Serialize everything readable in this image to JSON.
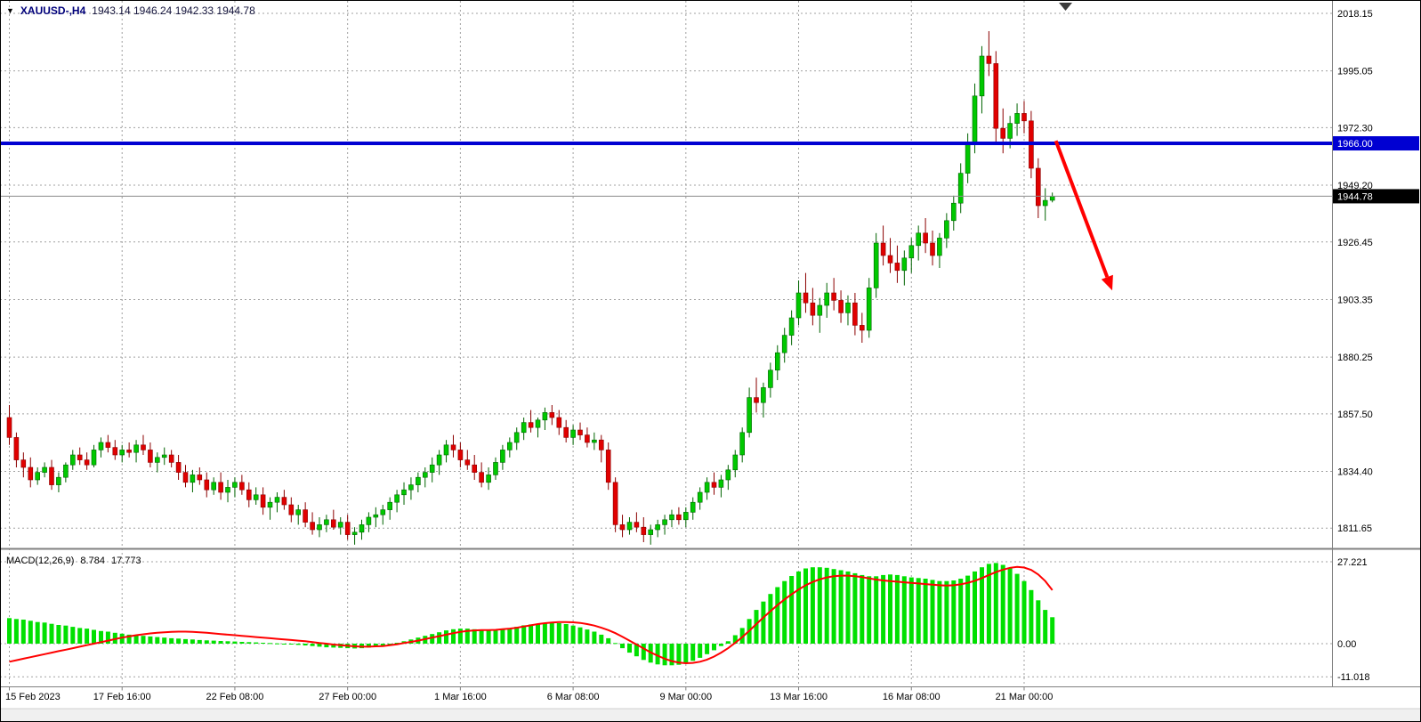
{
  "title": {
    "collapse_icon": "▼",
    "symbol": "XAUUSD-,H4",
    "ohlc": "1943.14 1946.24 1942.33 1944.78"
  },
  "macd_panel": {
    "title": "MACD(12,26,9)",
    "value_main": "8.784",
    "value_signal": "17.773"
  },
  "colors": {
    "up": "#00c800",
    "up_border": "#006400",
    "down": "#e00000",
    "down_border": "#8b0000",
    "histogram": "#00e000",
    "signal": "#ff0000",
    "hline": "#0000d2",
    "grid": "#a0a0a0",
    "current_chip_bg": "#000000",
    "arrow": "#ff0000"
  },
  "chart_data": {
    "type": "candlestick",
    "symbol": "XAUUSD",
    "timeframe": "H4",
    "current_candle": {
      "open": 1943.14,
      "high": 1946.24,
      "low": 1942.33,
      "close": 1944.78
    },
    "current_price": {
      "value": 1944.78,
      "label": "1944.78"
    },
    "hline": {
      "value": 1966.0,
      "label": "1966.00"
    },
    "price_axis": [
      {
        "label": "2018.15",
        "value": 2018.15
      },
      {
        "label": "1995.05",
        "value": 1995.05
      },
      {
        "label": "1972.30",
        "value": 1972.3
      },
      {
        "label": "1949.20",
        "value": 1949.2
      },
      {
        "label": "1926.45",
        "value": 1926.45
      },
      {
        "label": "1903.35",
        "value": 1903.35
      },
      {
        "label": "1880.25",
        "value": 1880.25
      },
      {
        "label": "1857.50",
        "value": 1857.5
      },
      {
        "label": "1834.40",
        "value": 1834.4
      },
      {
        "label": "1811.65",
        "value": 1811.65
      }
    ],
    "time_axis": [
      {
        "label": "15 Feb 2023",
        "i": 0
      },
      {
        "label": "17 Feb 16:00",
        "i": 16
      },
      {
        "label": "22 Feb 08:00",
        "i": 32
      },
      {
        "label": "27 Feb 00:00",
        "i": 48
      },
      {
        "label": "1 Mar 16:00",
        "i": 64
      },
      {
        "label": "6 Mar 08:00",
        "i": 80
      },
      {
        "label": "9 Mar 00:00",
        "i": 96
      },
      {
        "label": "13 Mar 16:00",
        "i": 112
      },
      {
        "label": "16 Mar 08:00",
        "i": 128
      },
      {
        "label": "21 Mar 00:00",
        "i": 144
      }
    ],
    "candles": [
      [
        1856,
        1861,
        1845,
        1848
      ],
      [
        1848,
        1850,
        1836,
        1839
      ],
      [
        1839,
        1842,
        1832,
        1836
      ],
      [
        1836,
        1840,
        1828,
        1831
      ],
      [
        1831,
        1836,
        1829,
        1834
      ],
      [
        1834,
        1838,
        1832,
        1836
      ],
      [
        1836,
        1839,
        1827,
        1829
      ],
      [
        1829,
        1834,
        1826,
        1832
      ],
      [
        1832,
        1838,
        1830,
        1837
      ],
      [
        1837,
        1843,
        1835,
        1841
      ],
      [
        1841,
        1844,
        1837,
        1839
      ],
      [
        1839,
        1842,
        1835,
        1837
      ],
      [
        1837,
        1845,
        1836,
        1843
      ],
      [
        1843,
        1848,
        1840,
        1846
      ],
      [
        1846,
        1849,
        1842,
        1844
      ],
      [
        1844,
        1847,
        1839,
        1841
      ],
      [
        1841,
        1845,
        1838,
        1843
      ],
      [
        1843,
        1846,
        1840,
        1842
      ],
      [
        1842,
        1847,
        1838,
        1845
      ],
      [
        1845,
        1849,
        1841,
        1843
      ],
      [
        1843,
        1846,
        1836,
        1838
      ],
      [
        1838,
        1842,
        1834,
        1840
      ],
      [
        1840,
        1844,
        1837,
        1841
      ],
      [
        1841,
        1843,
        1836,
        1838
      ],
      [
        1838,
        1841,
        1831,
        1834
      ],
      [
        1834,
        1837,
        1828,
        1830
      ],
      [
        1830,
        1835,
        1826,
        1833
      ],
      [
        1833,
        1836,
        1829,
        1831
      ],
      [
        1831,
        1834,
        1824,
        1827
      ],
      [
        1827,
        1832,
        1825,
        1830
      ],
      [
        1830,
        1834,
        1823,
        1826
      ],
      [
        1826,
        1831,
        1822,
        1828
      ],
      [
        1828,
        1832,
        1824,
        1830
      ],
      [
        1830,
        1833,
        1825,
        1827
      ],
      [
        1827,
        1830,
        1820,
        1823
      ],
      [
        1823,
        1828,
        1821,
        1825
      ],
      [
        1825,
        1828,
        1817,
        1820
      ],
      [
        1820,
        1824,
        1815,
        1822
      ],
      [
        1822,
        1826,
        1818,
        1824
      ],
      [
        1824,
        1827,
        1819,
        1821
      ],
      [
        1821,
        1824,
        1814,
        1817
      ],
      [
        1817,
        1821,
        1813,
        1819
      ],
      [
        1819,
        1822,
        1812,
        1814
      ],
      [
        1814,
        1818,
        1809,
        1811
      ],
      [
        1811,
        1816,
        1808,
        1813
      ],
      [
        1813,
        1817,
        1810,
        1815
      ],
      [
        1815,
        1819,
        1811,
        1812
      ],
      [
        1812,
        1816,
        1809,
        1814
      ],
      [
        1814,
        1817,
        1807,
        1809
      ],
      [
        1809,
        1812,
        1805,
        1810
      ],
      [
        1810,
        1815,
        1807,
        1813
      ],
      [
        1813,
        1818,
        1810,
        1816
      ],
      [
        1816,
        1820,
        1812,
        1817
      ],
      [
        1817,
        1821,
        1813,
        1819
      ],
      [
        1819,
        1824,
        1815,
        1822
      ],
      [
        1822,
        1827,
        1818,
        1825
      ],
      [
        1825,
        1830,
        1821,
        1827
      ],
      [
        1827,
        1832,
        1823,
        1829
      ],
      [
        1829,
        1834,
        1826,
        1832
      ],
      [
        1832,
        1836,
        1828,
        1834
      ],
      [
        1834,
        1840,
        1830,
        1837
      ],
      [
        1837,
        1843,
        1833,
        1841
      ],
      [
        1841,
        1847,
        1838,
        1845
      ],
      [
        1845,
        1849,
        1840,
        1843
      ],
      [
        1843,
        1846,
        1836,
        1839
      ],
      [
        1839,
        1843,
        1835,
        1837
      ],
      [
        1837,
        1841,
        1831,
        1834
      ],
      [
        1834,
        1838,
        1828,
        1830
      ],
      [
        1830,
        1836,
        1827,
        1833
      ],
      [
        1833,
        1840,
        1831,
        1838
      ],
      [
        1838,
        1845,
        1835,
        1843
      ],
      [
        1843,
        1848,
        1840,
        1846
      ],
      [
        1846,
        1852,
        1843,
        1850
      ],
      [
        1850,
        1856,
        1847,
        1854
      ],
      [
        1854,
        1859,
        1850,
        1852
      ],
      [
        1852,
        1856,
        1848,
        1855
      ],
      [
        1855,
        1860,
        1851,
        1858
      ],
      [
        1858,
        1861,
        1853,
        1856
      ],
      [
        1856,
        1859,
        1849,
        1852
      ],
      [
        1852,
        1855,
        1846,
        1848
      ],
      [
        1848,
        1853,
        1845,
        1851
      ],
      [
        1851,
        1854,
        1847,
        1849
      ],
      [
        1849,
        1852,
        1844,
        1846
      ],
      [
        1846,
        1850,
        1843,
        1847
      ],
      [
        1847,
        1849,
        1838,
        1843
      ],
      [
        1843,
        1846,
        1827,
        1830
      ],
      [
        1830,
        1832,
        1810,
        1813
      ],
      [
        1813,
        1817,
        1808,
        1811
      ],
      [
        1811,
        1816,
        1809,
        1814
      ],
      [
        1814,
        1818,
        1810,
        1812
      ],
      [
        1812,
        1816,
        1806,
        1809
      ],
      [
        1809,
        1813,
        1805,
        1811
      ],
      [
        1811,
        1815,
        1808,
        1813
      ],
      [
        1813,
        1817,
        1809,
        1815
      ],
      [
        1815,
        1819,
        1812,
        1817
      ],
      [
        1817,
        1820,
        1813,
        1815
      ],
      [
        1815,
        1820,
        1812,
        1818
      ],
      [
        1818,
        1824,
        1815,
        1822
      ],
      [
        1822,
        1828,
        1819,
        1826
      ],
      [
        1826,
        1832,
        1823,
        1830
      ],
      [
        1830,
        1834,
        1825,
        1828
      ],
      [
        1828,
        1833,
        1824,
        1831
      ],
      [
        1831,
        1837,
        1827,
        1835
      ],
      [
        1835,
        1843,
        1832,
        1841
      ],
      [
        1841,
        1852,
        1838,
        1850
      ],
      [
        1850,
        1868,
        1848,
        1864
      ],
      [
        1864,
        1872,
        1858,
        1862
      ],
      [
        1862,
        1870,
        1856,
        1868
      ],
      [
        1868,
        1878,
        1864,
        1875
      ],
      [
        1875,
        1885,
        1871,
        1882
      ],
      [
        1882,
        1892,
        1878,
        1889
      ],
      [
        1889,
        1899,
        1885,
        1896
      ],
      [
        1896,
        1911,
        1893,
        1906
      ],
      [
        1906,
        1914,
        1898,
        1902
      ],
      [
        1902,
        1908,
        1893,
        1897
      ],
      [
        1897,
        1904,
        1890,
        1901
      ],
      [
        1901,
        1910,
        1896,
        1906
      ],
      [
        1906,
        1912,
        1899,
        1903
      ],
      [
        1903,
        1907,
        1894,
        1898
      ],
      [
        1898,
        1905,
        1893,
        1902
      ],
      [
        1902,
        1906,
        1889,
        1893
      ],
      [
        1893,
        1898,
        1886,
        1891
      ],
      [
        1891,
        1912,
        1888,
        1908
      ],
      [
        1908,
        1930,
        1904,
        1926
      ],
      [
        1926,
        1933,
        1917,
        1921
      ],
      [
        1921,
        1928,
        1914,
        1918
      ],
      [
        1918,
        1925,
        1910,
        1915
      ],
      [
        1915,
        1923,
        1909,
        1920
      ],
      [
        1920,
        1928,
        1914,
        1925
      ],
      [
        1925,
        1933,
        1919,
        1930
      ],
      [
        1930,
        1936,
        1922,
        1926
      ],
      [
        1926,
        1931,
        1917,
        1921
      ],
      [
        1921,
        1930,
        1916,
        1928
      ],
      [
        1928,
        1938,
        1924,
        1935
      ],
      [
        1935,
        1945,
        1931,
        1942
      ],
      [
        1942,
        1958,
        1938,
        1954
      ],
      [
        1954,
        1970,
        1950,
        1966
      ],
      [
        1966,
        1990,
        1962,
        1985
      ],
      [
        1985,
        2005,
        1978,
        2001
      ],
      [
        2001,
        2011,
        1993,
        1998
      ],
      [
        1998,
        2003,
        1966,
        1972
      ],
      [
        1972,
        1980,
        1962,
        1968
      ],
      [
        1968,
        1977,
        1964,
        1974
      ],
      [
        1974,
        1982,
        1969,
        1978
      ],
      [
        1978,
        1983,
        1970,
        1975
      ],
      [
        1975,
        1979,
        1952,
        1956
      ],
      [
        1956,
        1960,
        1936,
        1941
      ],
      [
        1941,
        1948,
        1935,
        1943.1
      ],
      [
        1943.14,
        1946.24,
        1942.33,
        1944.78
      ]
    ],
    "macd": {
      "label": "MACD(12,26,9)",
      "main_value": 8.784,
      "signal_value": 17.773,
      "axis": [
        {
          "label": "27.221",
          "value": 27.221
        },
        {
          "label": "0.00",
          "value": 0
        },
        {
          "label": "-11.018",
          "value": -11.018
        }
      ],
      "histogram": [
        8.5,
        8.2,
        8.0,
        7.6,
        7.2,
        7.0,
        6.6,
        6.2,
        6.0,
        5.6,
        5.2,
        5.0,
        4.6,
        4.2,
        4.0,
        3.6,
        3.3,
        3.0,
        2.8,
        2.6,
        2.4,
        2.2,
        2.0,
        1.8,
        1.7,
        1.5,
        1.4,
        1.2,
        1.1,
        1.0,
        0.9,
        0.8,
        0.7,
        0.6,
        0.5,
        0.4,
        0.3,
        0.2,
        0.1,
        0.0,
        -0.2,
        -0.4,
        -0.6,
        -0.8,
        -1.0,
        -1.2,
        -1.3,
        -1.4,
        -1.5,
        -1.6,
        -1.5,
        -1.3,
        -1.0,
        -0.6,
        -0.2,
        0.3,
        0.8,
        1.4,
        2.0,
        2.6,
        3.2,
        3.8,
        4.4,
        4.8,
        5.0,
        5.0,
        4.8,
        4.5,
        4.3,
        4.4,
        4.7,
        5.1,
        5.6,
        6.1,
        6.4,
        6.6,
        6.8,
        6.9,
        6.8,
        6.5,
        6.0,
        5.4,
        4.7,
        4.0,
        3.0,
        1.8,
        0.2,
        -1.5,
        -3.0,
        -4.2,
        -5.4,
        -6.3,
        -6.9,
        -7.2,
        -7.2,
        -7.0,
        -6.5,
        -5.7,
        -4.7,
        -3.5,
        -2.2,
        -0.8,
        0.8,
        2.8,
        5.2,
        8.2,
        11.2,
        14.0,
        16.5,
        18.8,
        20.8,
        22.5,
        24.0,
        25.0,
        25.4,
        25.4,
        25.2,
        24.8,
        24.4,
        24.0,
        23.4,
        22.8,
        22.4,
        22.4,
        22.8,
        23.0,
        22.8,
        22.4,
        22.0,
        21.8,
        21.6,
        21.2,
        20.8,
        20.8,
        21.0,
        21.6,
        22.6,
        24.0,
        25.4,
        26.5,
        26.8,
        26.2,
        25.0,
        23.2,
        20.8,
        17.8,
        14.4,
        11.2,
        8.784
      ],
      "signal": [
        -6.0,
        -5.5,
        -5.0,
        -4.5,
        -4.0,
        -3.5,
        -3.0,
        -2.5,
        -2.0,
        -1.5,
        -1.0,
        -0.5,
        0.0,
        0.5,
        1.0,
        1.5,
        2.0,
        2.4,
        2.8,
        3.1,
        3.4,
        3.6,
        3.8,
        3.9,
        4.0,
        4.0,
        3.9,
        3.8,
        3.6,
        3.4,
        3.2,
        3.0,
        2.8,
        2.6,
        2.4,
        2.2,
        2.0,
        1.8,
        1.6,
        1.4,
        1.2,
        1.0,
        0.8,
        0.5,
        0.2,
        0.0,
        -0.3,
        -0.5,
        -0.7,
        -0.9,
        -1.0,
        -1.0,
        -0.9,
        -0.8,
        -0.5,
        -0.2,
        0.2,
        0.6,
        1.0,
        1.5,
        2.0,
        2.5,
        3.0,
        3.5,
        3.9,
        4.2,
        4.4,
        4.5,
        4.5,
        4.6,
        4.8,
        5.0,
        5.3,
        5.7,
        6.1,
        6.5,
        6.8,
        7.0,
        7.2,
        7.2,
        7.1,
        6.9,
        6.5,
        6.0,
        5.3,
        4.5,
        3.5,
        2.3,
        1.0,
        -0.3,
        -1.6,
        -2.9,
        -4.0,
        -5.0,
        -5.8,
        -6.3,
        -6.5,
        -6.4,
        -6.0,
        -5.3,
        -4.3,
        -3.0,
        -1.5,
        0.3,
        2.2,
        4.3,
        6.5,
        8.7,
        10.8,
        12.8,
        14.7,
        16.4,
        18.0,
        19.4,
        20.5,
        21.4,
        22.0,
        22.4,
        22.6,
        22.6,
        22.4,
        22.1,
        21.7,
        21.3,
        21.0,
        20.8,
        20.6,
        20.4,
        20.2,
        20.0,
        19.8,
        19.6,
        19.4,
        19.3,
        19.4,
        19.7,
        20.2,
        20.9,
        21.8,
        22.8,
        23.8,
        24.6,
        25.2,
        25.5,
        25.3,
        24.5,
        23.0,
        20.8,
        17.773
      ]
    },
    "arrow": {
      "from": {
        "i": 148.5,
        "price": 1967
      },
      "to": {
        "i": 156.5,
        "price": 1907
      }
    }
  }
}
